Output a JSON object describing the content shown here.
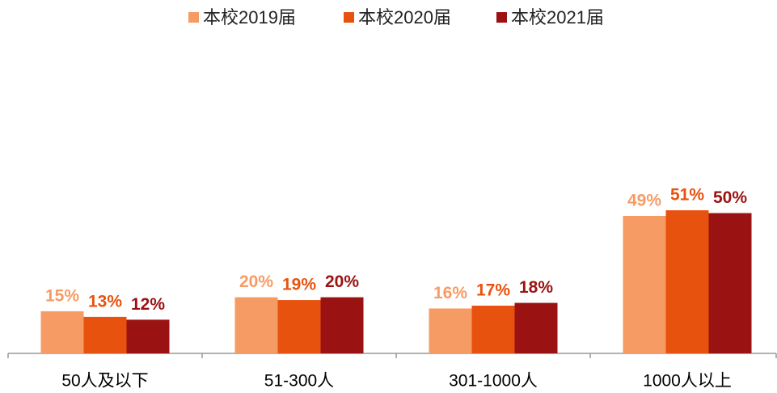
{
  "chart_data": {
    "type": "bar",
    "categories": [
      "50人及以下",
      "51-300人",
      "301-1000人",
      "1000人以上"
    ],
    "series": [
      {
        "name": "本校2019届",
        "color": "#f79b64",
        "values": [
          15,
          20,
          16,
          49
        ],
        "value_labels": [
          "15%",
          "20%",
          "16%",
          "49%"
        ]
      },
      {
        "name": "本校2020届",
        "color": "#e8520f",
        "values": [
          13,
          19,
          17,
          51
        ],
        "value_labels": [
          "13%",
          "19%",
          "17%",
          "51%"
        ]
      },
      {
        "name": "本校2021届",
        "color": "#9b1212",
        "values": [
          12,
          20,
          18,
          50
        ],
        "value_labels": [
          "12%",
          "20%",
          "18%",
          "50%"
        ]
      }
    ],
    "legend": "top"
  }
}
